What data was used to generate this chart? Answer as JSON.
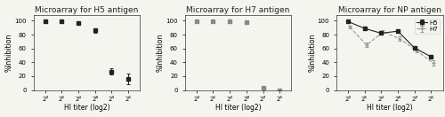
{
  "panel1": {
    "title": "Microarray for H5 antigen",
    "x_positions": [
      1,
      2,
      3,
      4,
      5,
      6
    ],
    "x_labels": [
      "2³",
      "2⁵",
      "2⁴",
      "2⁸",
      "2³",
      "2⁵"
    ],
    "y_values": [
      99,
      99,
      97,
      86,
      27,
      16
    ],
    "y_errors": [
      0.5,
      0.5,
      1.0,
      3.0,
      4.0,
      8.0
    ],
    "color": "#222222",
    "marker": "s"
  },
  "panel2": {
    "title": "Microarray for H7 antigen",
    "x_positions": [
      1,
      2,
      3,
      4,
      5,
      6
    ],
    "x_labels": [
      "2³",
      "2⁵",
      "2⁴",
      "2⁸",
      "2³",
      "2⁵"
    ],
    "y_values": [
      99,
      99,
      99,
      98,
      4,
      0
    ],
    "y_errors": [
      0.3,
      0.3,
      0.3,
      0.3,
      1.0,
      0.3
    ],
    "color": "#888888",
    "marker": "s"
  },
  "panel3": {
    "title": "Microarray for NP antigen",
    "x_positions": [
      1,
      2,
      3,
      4,
      5,
      6
    ],
    "x_labels": [
      "2³",
      "2⁵",
      "2⁴",
      "2⁸",
      "2³",
      "2⁵"
    ],
    "h5_values": [
      99,
      89,
      82,
      85,
      61,
      48
    ],
    "h5_errors": [
      0.8,
      1.5,
      2.0,
      1.5,
      2.0,
      2.0
    ],
    "h7_values": [
      91,
      65,
      84,
      74,
      57,
      39
    ],
    "h7_errors": [
      2.5,
      3.0,
      2.0,
      3.0,
      2.5,
      3.5
    ],
    "h5_color": "#222222",
    "h7_color": "#999999",
    "h5_marker": "s",
    "h7_marker": "+"
  },
  "xlabel": "HI titer (log2)",
  "ylabel": "%Inhibition",
  "ylim": [
    0,
    108
  ],
  "yticks": [
    0,
    20,
    40,
    60,
    80,
    100
  ],
  "bg_color": "#f5f5f0",
  "title_fontsize": 6.5,
  "label_fontsize": 5.5,
  "tick_fontsize": 5.0,
  "legend_fontsize": 5.0
}
